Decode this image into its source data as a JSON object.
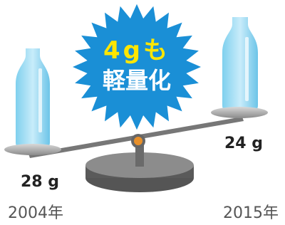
{
  "badge": {
    "lines": [
      "4gも",
      "軽量化"
    ]
  },
  "left": {
    "weight": "28 g",
    "year": "2004年"
  },
  "right": {
    "weight": "24 g",
    "year": "2015年"
  }
}
